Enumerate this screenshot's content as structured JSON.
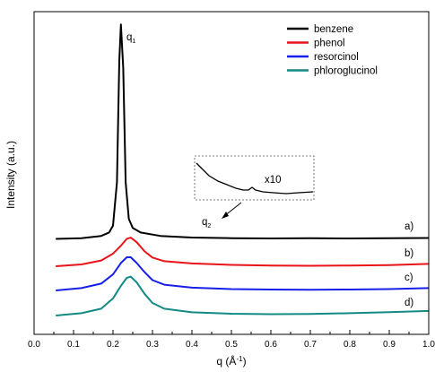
{
  "chart_data": {
    "type": "line",
    "title": "",
    "xlabel": "q (Å",
    "xlabel_exponent": "-1",
    "xlabel_close": ")",
    "ylabel": "Intensity (a.u.)",
    "xlim": [
      0.0,
      1.0
    ],
    "x_ticks": [
      "0.0",
      "0.1",
      "0.2",
      "0.3",
      "0.4",
      "0.5",
      "0.6",
      "0.7",
      "0.8",
      "0.9",
      "1.0"
    ],
    "y_ticks_shown": false,
    "legend_position": "top-right",
    "series": [
      {
        "name": "benzene",
        "color": "#000000",
        "label": "a)",
        "baseline": 0.0,
        "points": [
          [
            0.055,
            0.02
          ],
          [
            0.12,
            0.05
          ],
          [
            0.17,
            0.15
          ],
          [
            0.19,
            0.3
          ],
          [
            0.2,
            0.6
          ],
          [
            0.21,
            2.5
          ],
          [
            0.216,
            7.8
          ],
          [
            0.22,
            9.4
          ],
          [
            0.226,
            7.5
          ],
          [
            0.232,
            2.5
          ],
          [
            0.24,
            0.9
          ],
          [
            0.25,
            0.5
          ],
          [
            0.27,
            0.3
          ],
          [
            0.32,
            0.15
          ],
          [
            0.4,
            0.08
          ],
          [
            0.5,
            0.05
          ],
          [
            0.6,
            0.04
          ],
          [
            0.7,
            0.05
          ],
          [
            0.8,
            0.04
          ],
          [
            0.9,
            0.05
          ],
          [
            1.0,
            0.06
          ]
        ]
      },
      {
        "name": "phenol",
        "color": "#e8141a",
        "label": "b)",
        "baseline": -1.0,
        "points": [
          [
            0.055,
            0.0
          ],
          [
            0.12,
            0.08
          ],
          [
            0.17,
            0.25
          ],
          [
            0.2,
            0.55
          ],
          [
            0.22,
            0.9
          ],
          [
            0.235,
            1.2
          ],
          [
            0.245,
            1.25
          ],
          [
            0.26,
            1.05
          ],
          [
            0.28,
            0.65
          ],
          [
            0.3,
            0.38
          ],
          [
            0.33,
            0.22
          ],
          [
            0.4,
            0.12
          ],
          [
            0.5,
            0.06
          ],
          [
            0.6,
            0.03
          ],
          [
            0.7,
            0.02
          ],
          [
            0.8,
            0.03
          ],
          [
            0.9,
            0.05
          ],
          [
            1.0,
            0.1
          ]
        ]
      },
      {
        "name": "resorcinol",
        "color": "#1620e8",
        "label": "c)",
        "baseline": -2.0,
        "points": [
          [
            0.055,
            0.0
          ],
          [
            0.12,
            0.1
          ],
          [
            0.17,
            0.3
          ],
          [
            0.2,
            0.7
          ],
          [
            0.22,
            1.2
          ],
          [
            0.235,
            1.45
          ],
          [
            0.245,
            1.45
          ],
          [
            0.26,
            1.2
          ],
          [
            0.28,
            0.8
          ],
          [
            0.3,
            0.45
          ],
          [
            0.33,
            0.25
          ],
          [
            0.4,
            0.12
          ],
          [
            0.5,
            0.06
          ],
          [
            0.6,
            0.04
          ],
          [
            0.7,
            0.03
          ],
          [
            0.8,
            0.04
          ],
          [
            0.9,
            0.06
          ],
          [
            1.0,
            0.1
          ]
        ]
      },
      {
        "name": "phloroglucinol",
        "color": "#138a84",
        "label": "d)",
        "baseline": -3.0,
        "points": [
          [
            0.055,
            0.0
          ],
          [
            0.12,
            0.1
          ],
          [
            0.17,
            0.3
          ],
          [
            0.2,
            0.75
          ],
          [
            0.22,
            1.3
          ],
          [
            0.235,
            1.65
          ],
          [
            0.245,
            1.7
          ],
          [
            0.26,
            1.45
          ],
          [
            0.28,
            0.95
          ],
          [
            0.3,
            0.55
          ],
          [
            0.33,
            0.3
          ],
          [
            0.4,
            0.14
          ],
          [
            0.5,
            0.08
          ],
          [
            0.6,
            0.06
          ],
          [
            0.7,
            0.07
          ],
          [
            0.8,
            0.1
          ],
          [
            0.9,
            0.15
          ],
          [
            1.0,
            0.2
          ]
        ]
      }
    ],
    "annotations": {
      "peak_label_main": "q",
      "peak_label_sub": "1",
      "q2_label_main": "q",
      "q2_label_sub": "2",
      "inset_label": "x10"
    }
  }
}
